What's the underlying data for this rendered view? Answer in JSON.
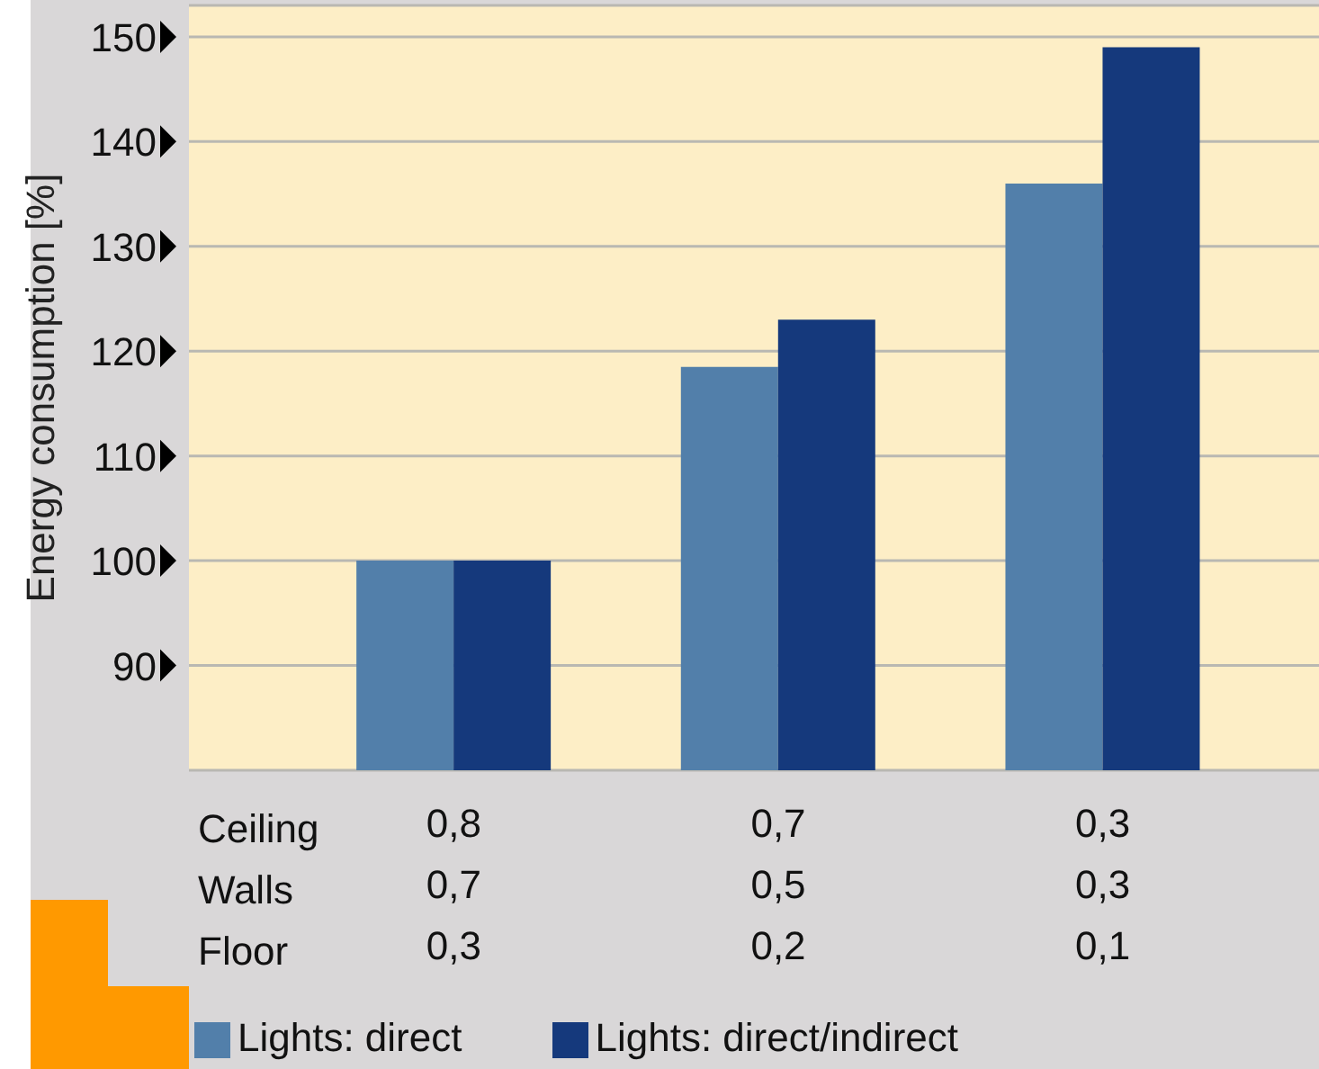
{
  "chart_data": {
    "type": "bar",
    "ylabel": "Energy consumption  [%]",
    "categories": [
      "0,8\n0,7\n0,3",
      "0,7\n0,5\n0,2",
      "0,3\n0,3\n0,1"
    ],
    "annotations": [
      "Ceiling",
      "Walls",
      "Floor"
    ],
    "series": [
      {
        "name": "Lights: direct",
        "color": "#527faa",
        "values": [
          100,
          118.5,
          136
        ]
      },
      {
        "name": "Lights: direct/indirect",
        "color": "#15397c",
        "values": [
          100,
          123,
          149
        ]
      }
    ],
    "ylim": [
      80,
      153
    ],
    "yticks": [
      90,
      100,
      110,
      120,
      130,
      140,
      150
    ],
    "grid": "y",
    "legend": "bottom left"
  }
}
